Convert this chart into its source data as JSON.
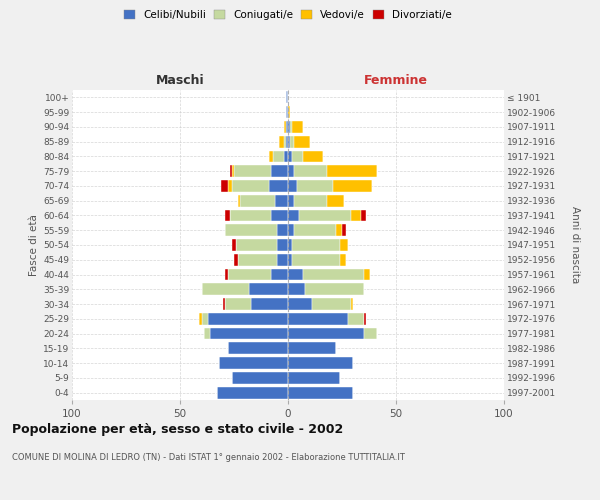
{
  "age_groups": [
    "0-4",
    "5-9",
    "10-14",
    "15-19",
    "20-24",
    "25-29",
    "30-34",
    "35-39",
    "40-44",
    "45-49",
    "50-54",
    "55-59",
    "60-64",
    "65-69",
    "70-74",
    "75-79",
    "80-84",
    "85-89",
    "90-94",
    "95-99",
    "100+"
  ],
  "birth_years": [
    "1997-2001",
    "1992-1996",
    "1987-1991",
    "1982-1986",
    "1977-1981",
    "1972-1976",
    "1967-1971",
    "1962-1966",
    "1957-1961",
    "1952-1956",
    "1947-1951",
    "1942-1946",
    "1937-1941",
    "1932-1936",
    "1927-1931",
    "1922-1926",
    "1917-1921",
    "1912-1916",
    "1907-1911",
    "1902-1906",
    "≤ 1901"
  ],
  "males": {
    "celibi": [
      33,
      26,
      32,
      28,
      36,
      37,
      17,
      18,
      8,
      5,
      5,
      5,
      8,
      6,
      9,
      8,
      2,
      1,
      1,
      1,
      1
    ],
    "coniugati": [
      0,
      0,
      0,
      0,
      3,
      3,
      12,
      22,
      20,
      18,
      19,
      24,
      19,
      16,
      17,
      17,
      5,
      1,
      0,
      0,
      0
    ],
    "vedovi": [
      0,
      0,
      0,
      0,
      0,
      1,
      0,
      0,
      0,
      0,
      0,
      0,
      0,
      1,
      2,
      1,
      2,
      2,
      1,
      0,
      0
    ],
    "divorziati": [
      0,
      0,
      0,
      0,
      0,
      0,
      1,
      0,
      1,
      2,
      2,
      0,
      2,
      0,
      3,
      1,
      0,
      0,
      0,
      0,
      0
    ]
  },
  "females": {
    "nubili": [
      30,
      24,
      30,
      22,
      35,
      28,
      11,
      8,
      7,
      2,
      2,
      3,
      5,
      3,
      4,
      3,
      2,
      1,
      1,
      0,
      0
    ],
    "coniugate": [
      0,
      0,
      0,
      0,
      6,
      7,
      18,
      27,
      28,
      22,
      22,
      19,
      24,
      15,
      17,
      15,
      5,
      2,
      1,
      0,
      0
    ],
    "vedove": [
      0,
      0,
      0,
      0,
      0,
      0,
      1,
      0,
      3,
      3,
      4,
      3,
      5,
      8,
      18,
      23,
      9,
      7,
      5,
      1,
      0
    ],
    "divorziate": [
      0,
      0,
      0,
      0,
      0,
      1,
      0,
      0,
      0,
      0,
      0,
      2,
      2,
      0,
      0,
      0,
      0,
      0,
      0,
      0,
      0
    ]
  },
  "colors": {
    "celibi": "#4472c4",
    "coniugati": "#c5d9a0",
    "vedovi": "#ffc000",
    "divorziati": "#cc0000"
  },
  "title": "Popolazione per età, sesso e stato civile - 2002",
  "subtitle": "COMUNE DI MOLINA DI LEDRO (TN) - Dati ISTAT 1° gennaio 2002 - Elaborazione TUTTITALIA.IT",
  "xlabel_left": "Maschi",
  "xlabel_right": "Femmine",
  "ylabel_left": "Fasce di età",
  "ylabel_right": "Anni di nascita",
  "legend_labels": [
    "Celibi/Nubili",
    "Coniugati/e",
    "Vedovi/e",
    "Divorziati/e"
  ],
  "xlim": 100,
  "background_color": "#f0f0f0",
  "plot_background": "#ffffff"
}
